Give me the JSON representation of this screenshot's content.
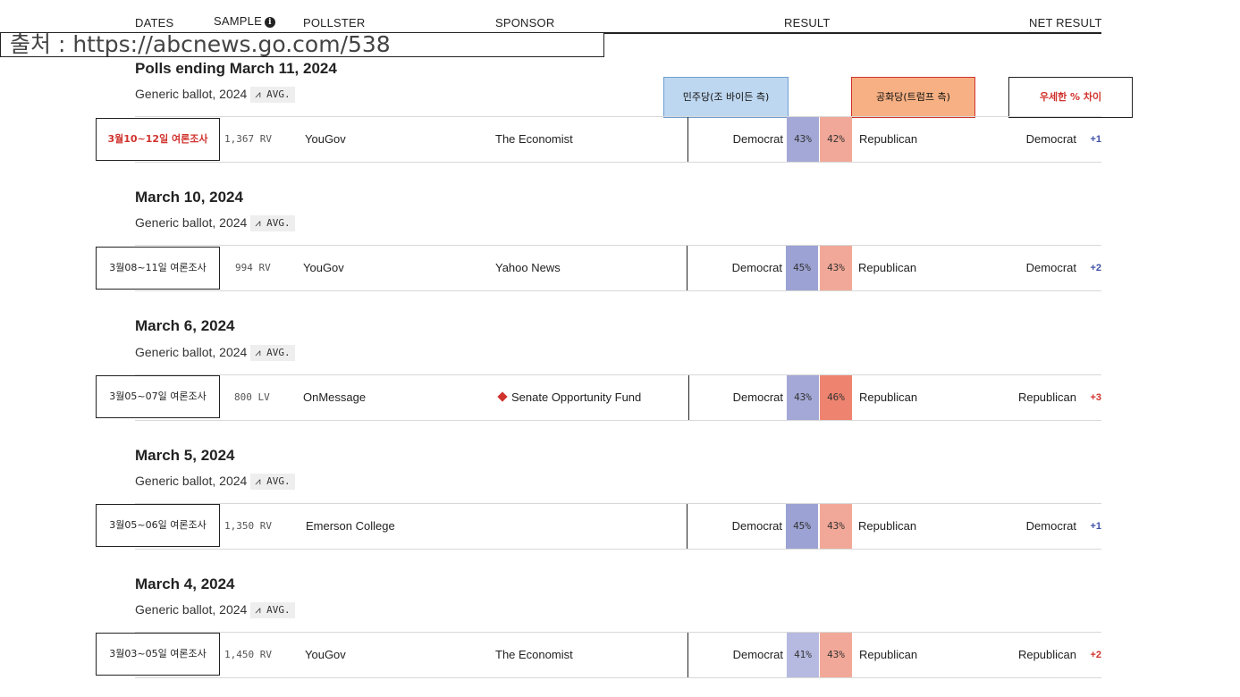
{
  "header": {
    "dates": "DATES",
    "sample": "SAMPLE",
    "pollster": "POLLSTER",
    "sponsor": "SPONSOR",
    "result": "RESULT",
    "net_result": "NET RESULT",
    "info_icon": "i"
  },
  "source_note": "출처 : https://abcnews.go.com/538",
  "legend": {
    "dem": "민주당(조 바이든 측)",
    "rep": "공화당(트럼프 측)",
    "diff": "우세한 % 차이"
  },
  "colors": {
    "dem_fill": "#a3a8d6",
    "rep_fill_light": "#f2a898",
    "rep_fill_dark": "#ee8470",
    "dem_text": "#3f51a8",
    "rep_text": "#d0332d",
    "legend_dem_bg": "#bed7f0",
    "legend_rep_bg": "#f6b083"
  },
  "sections": [
    {
      "title": "Polls ending March 11, 2024",
      "subtitle": "Generic ballot, 2024",
      "avg": "AVG.",
      "date_label": "3월10~12일 여론조사",
      "sample": "1,367 RV",
      "pollster": "YouGov",
      "sponsor": "The Economist",
      "dem_label": "Democrat",
      "dem_pct": "43%",
      "rep_pct": "42%",
      "rep_label": "Republican",
      "net_party": "Democrat",
      "net_value": "+1"
    },
    {
      "title": "March 10, 2024",
      "subtitle": "Generic ballot, 2024",
      "avg": "AVG.",
      "date_label": "3월08~11일 여론조사",
      "sample": "994 RV",
      "pollster": "YouGov",
      "sponsor": "Yahoo News",
      "dem_label": "Democrat",
      "dem_pct": "45%",
      "rep_pct": "43%",
      "rep_label": "Republican",
      "net_party": "Democrat",
      "net_value": "+2"
    },
    {
      "title": "March 6, 2024",
      "subtitle": "Generic ballot, 2024",
      "avg": "AVG.",
      "date_label": "3월05~07일 여론조사",
      "sample": "800 LV",
      "pollster": "OnMessage",
      "sponsor": "Senate Opportunity Fund",
      "dem_label": "Democrat",
      "dem_pct": "43%",
      "rep_pct": "46%",
      "rep_label": "Republican",
      "net_party": "Republican",
      "net_value": "+3"
    },
    {
      "title": "March 5, 2024",
      "subtitle": "Generic ballot, 2024",
      "avg": "AVG.",
      "date_label": "3월05~06일 여론조사",
      "sample": "1,350 RV",
      "pollster": "Emerson College",
      "sponsor": "",
      "dem_label": "Democrat",
      "dem_pct": "45%",
      "rep_pct": "43%",
      "rep_label": "Republican",
      "net_party": "Democrat",
      "net_value": "+1"
    },
    {
      "title": "March 4, 2024",
      "subtitle": "Generic ballot, 2024",
      "avg": "AVG.",
      "date_label": "3월03~05일 여론조사",
      "sample": "1,450 RV",
      "pollster": "YouGov",
      "sponsor": "The Economist",
      "dem_label": "Democrat",
      "dem_pct": "41%",
      "rep_pct": "43%",
      "rep_label": "Republican",
      "net_party": "Republican",
      "net_value": "+2"
    }
  ]
}
